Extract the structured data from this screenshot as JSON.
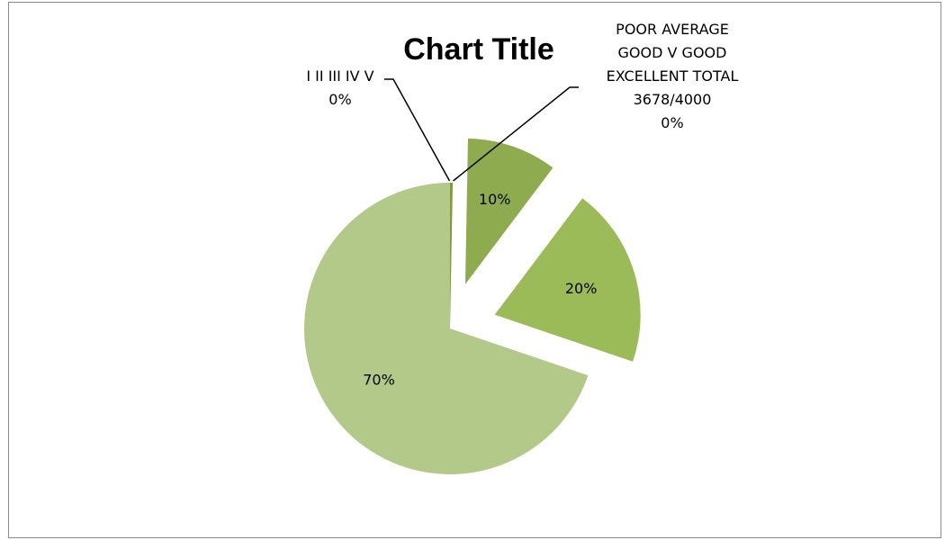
{
  "chart_data": {
    "type": "pie",
    "title": "Chart Title",
    "slices": [
      {
        "label_lines": [
          "I II III IV V",
          "0%"
        ],
        "value": 0.3,
        "color": "#7f9a3f",
        "exploded": false
      },
      {
        "label_lines": [
          "POOR AVERAGE",
          "GOOD V GOOD",
          "EXCELLENT TOTAL",
          "3678/4000",
          "0%"
        ],
        "value": 0,
        "color": "#77933c",
        "exploded": false
      },
      {
        "label_lines": [
          "10%"
        ],
        "value": 10,
        "color": "#8fab4f",
        "exploded": true
      },
      {
        "label_lines": [
          "20%"
        ],
        "value": 20,
        "color": "#9bbb59",
        "exploded": true
      },
      {
        "label_lines": [
          "70%"
        ],
        "value": 70,
        "color": "#b3c98a",
        "exploded": false
      }
    ]
  }
}
